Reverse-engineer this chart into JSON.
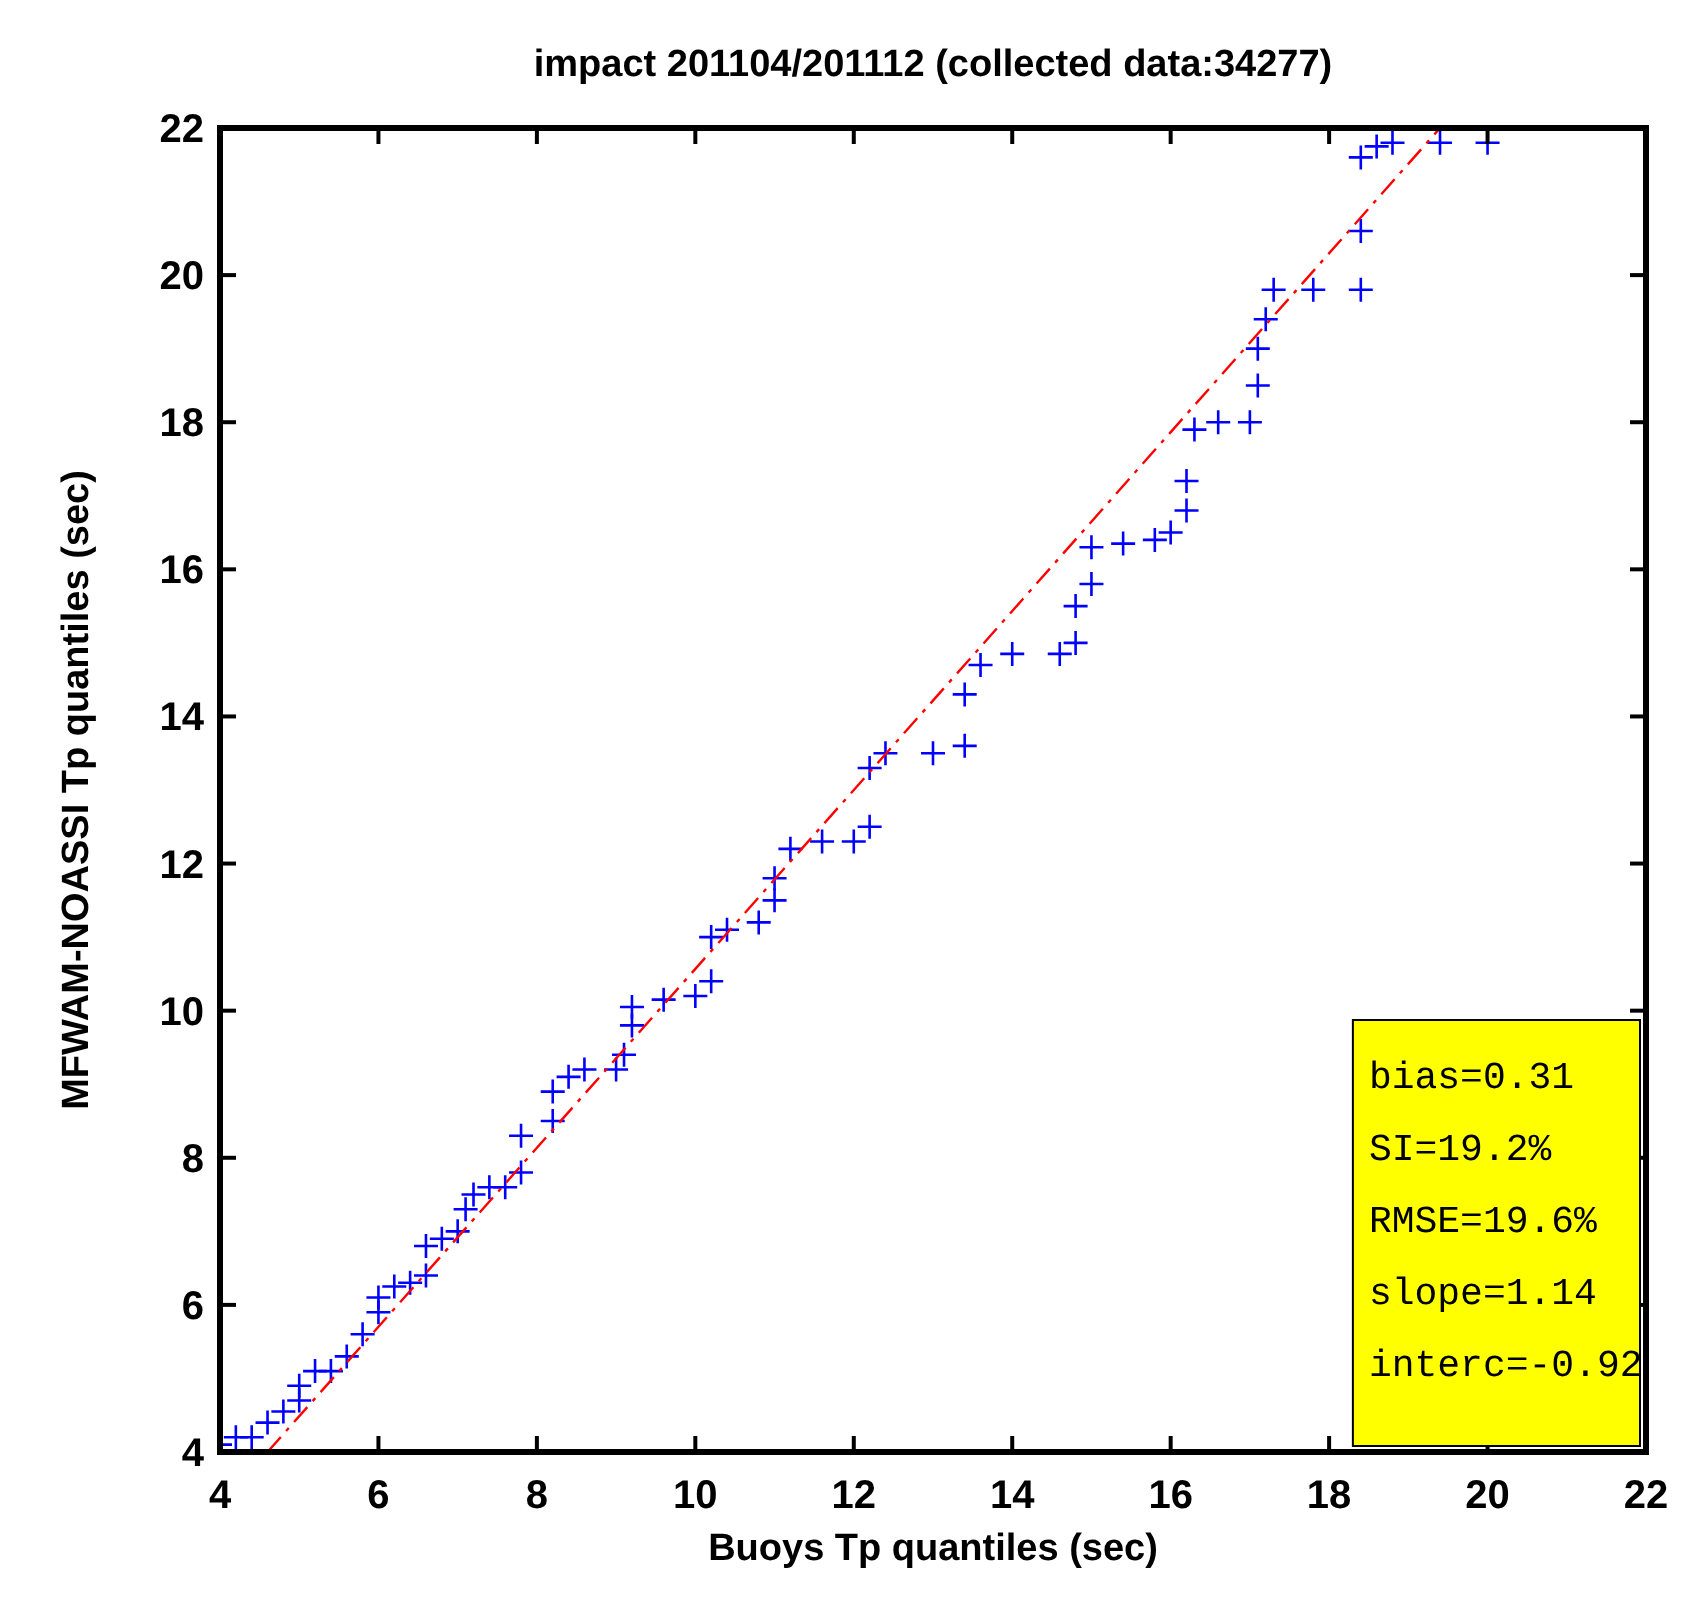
{
  "chart_data": {
    "type": "scatter",
    "title": "impact 201104/201112 (collected data:34277)",
    "xlabel": "Buoys Tp quantiles (sec)",
    "ylabel": "MFWAM-NOASSI Tp quantiles (sec)",
    "xlim": [
      4,
      22
    ],
    "ylim": [
      4,
      22
    ],
    "xticks": [
      4,
      6,
      8,
      10,
      12,
      14,
      16,
      18,
      20,
      22
    ],
    "yticks": [
      4,
      6,
      8,
      10,
      12,
      14,
      16,
      18,
      20,
      22
    ],
    "grid": false,
    "series": [
      {
        "color": "#0000ff",
        "marker": "cross",
        "x": [
          4.0,
          4.2,
          4.4,
          4.6,
          4.8,
          5.0,
          5.0,
          5.2,
          5.4,
          5.6,
          5.8,
          6.0,
          6.0,
          6.2,
          6.4,
          6.6,
          6.6,
          6.8,
          7.0,
          7.1,
          7.2,
          7.4,
          7.6,
          7.8,
          7.8,
          8.2,
          8.2,
          8.4,
          8.6,
          9.0,
          9.1,
          9.2,
          9.2,
          9.6,
          10.0,
          10.2,
          10.2,
          10.4,
          10.8,
          11.0,
          11.0,
          11.2,
          11.6,
          12.0,
          12.2,
          12.2,
          12.4,
          13.0,
          13.4,
          13.4,
          13.6,
          14.0,
          14.6,
          14.8,
          14.8,
          15.0,
          15.0,
          15.4,
          15.8,
          16.0,
          16.2,
          16.2,
          16.3,
          16.6,
          17.0,
          17.1,
          17.1,
          17.2,
          17.3,
          17.8,
          18.4,
          18.4,
          18.4,
          18.6,
          18.8,
          19.4,
          20.0
        ],
        "values": [
          4.1,
          4.2,
          4.2,
          4.4,
          4.55,
          4.7,
          4.9,
          5.1,
          5.1,
          5.3,
          5.6,
          5.9,
          6.1,
          6.25,
          6.3,
          6.4,
          6.8,
          6.9,
          7.0,
          7.3,
          7.5,
          7.6,
          7.6,
          7.8,
          8.3,
          8.5,
          8.9,
          9.1,
          9.2,
          9.2,
          9.4,
          9.8,
          10.05,
          10.15,
          10.2,
          10.4,
          11.0,
          11.1,
          11.2,
          11.5,
          11.8,
          12.2,
          12.3,
          12.3,
          12.5,
          13.3,
          13.5,
          13.5,
          13.6,
          14.3,
          14.7,
          14.85,
          14.85,
          15.0,
          15.5,
          15.8,
          16.3,
          16.35,
          16.4,
          16.5,
          16.8,
          17.2,
          17.9,
          18.0,
          18.0,
          18.5,
          19.0,
          19.4,
          19.8,
          19.8,
          19.8,
          20.6,
          21.6,
          21.75,
          21.8,
          21.8,
          21.8
        ]
      },
      {
        "type": "line",
        "color": "#ff0000",
        "line_style": "dashed",
        "x": [
          4.6,
          19.4
        ],
        "values": [
          4,
          22
        ]
      }
    ],
    "annotations": [
      "bias=0.31",
      "SI=19.2%",
      "RMSE=19.6%",
      "slope=1.14",
      "interc=-0.92"
    ]
  }
}
